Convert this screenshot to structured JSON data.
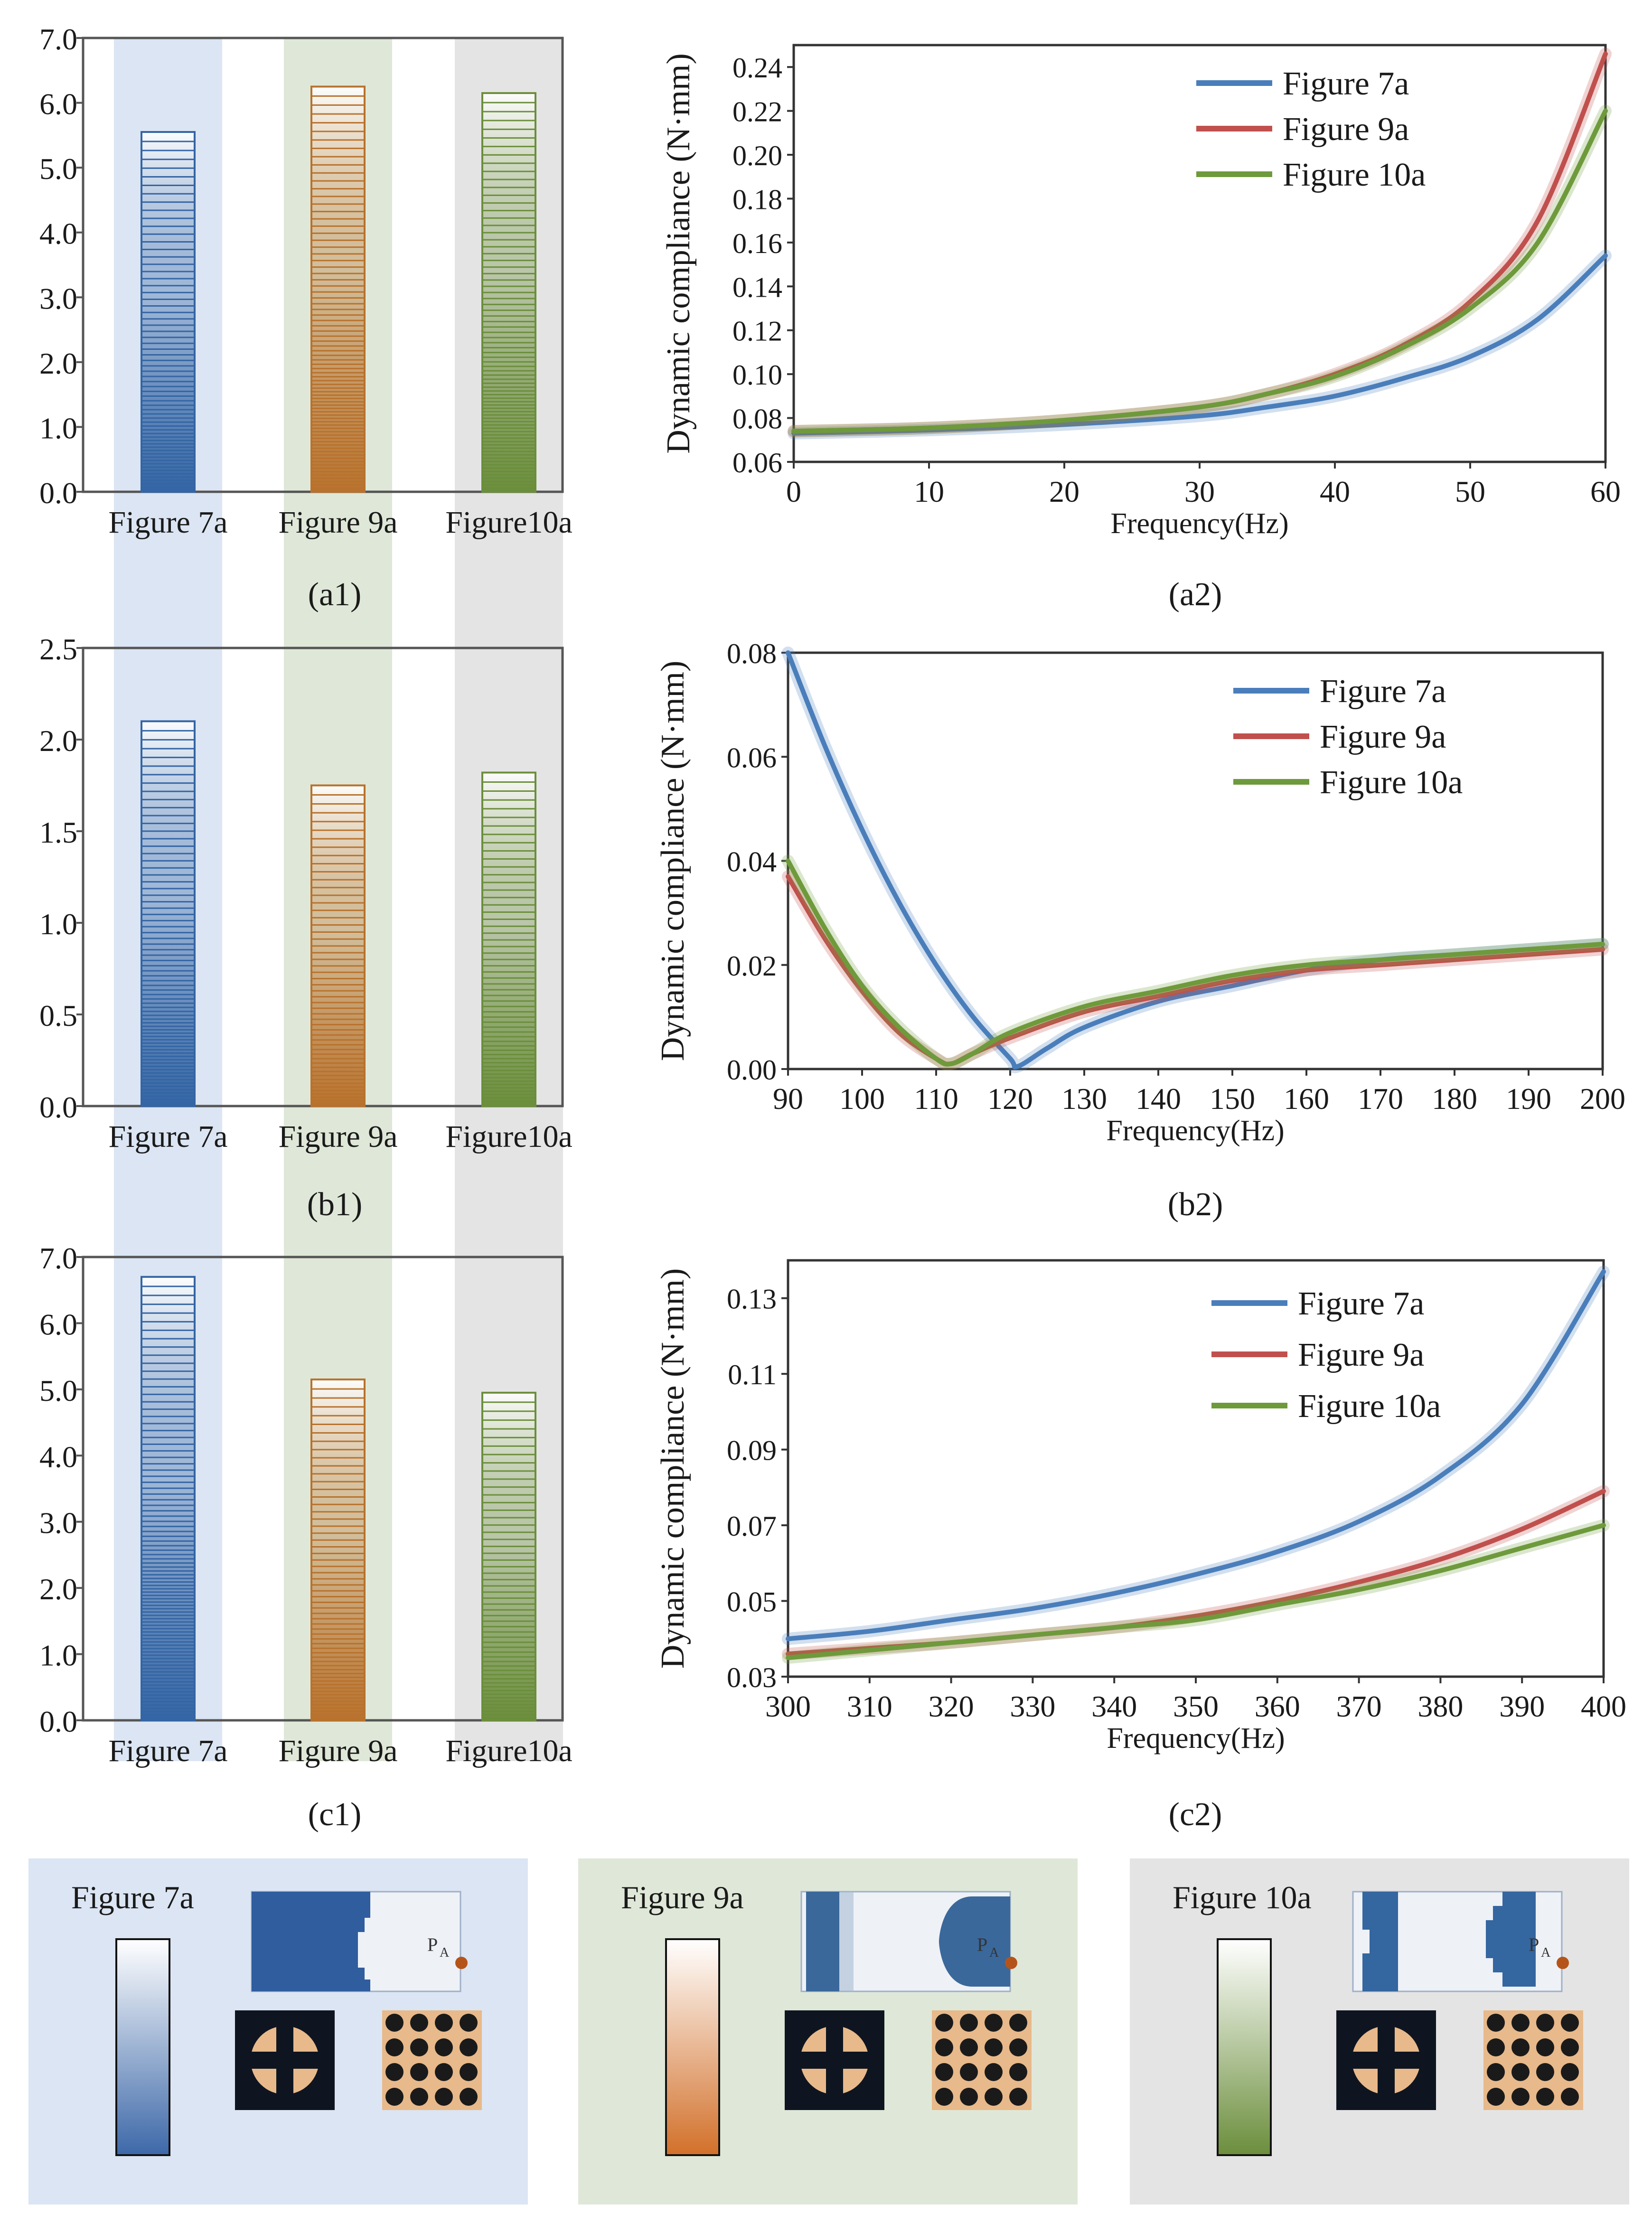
{
  "figure_labels": [
    "(a1)",
    "(a2)",
    "(b1)",
    "(b2)",
    "(c1)",
    "(c2)"
  ],
  "colors": {
    "blue": "#3465a4",
    "orange": "#b8722d",
    "green": "#6b8e3c",
    "red": "#c0504d",
    "line_green": "#6e9a3c",
    "band_blue": "#dbe5f3",
    "band_green": "#dfe8d8",
    "band_gray": "#e4e4e4"
  },
  "chart_data": [
    {
      "id": "a1",
      "type": "bar",
      "categories": [
        "Figure 7a",
        "Figure 9a",
        "Figure10a"
      ],
      "values": [
        5.55,
        6.25,
        6.15
      ],
      "ylim": [
        0,
        7
      ],
      "ytick_step": 1,
      "ytick_decimals": 1,
      "title": "",
      "xlabel": "",
      "ylabel": ""
    },
    {
      "id": "a2",
      "type": "line",
      "xlim": [
        0,
        60
      ],
      "x_ticks": [
        0,
        10,
        20,
        30,
        40,
        50,
        60
      ],
      "ylim": [
        0.06,
        0.25
      ],
      "y_ticks": [
        0.06,
        0.08,
        0.1,
        0.12,
        0.14,
        0.16,
        0.18,
        0.2,
        0.22,
        0.24
      ],
      "ytick_decimals": 2,
      "xlabel": "Frequency(Hz)",
      "ylabel": "Dynamic compliance (N·mm)",
      "legend_position": "top-right",
      "series": [
        {
          "name": "Figure 7a",
          "color": "#4a7ebb",
          "x": [
            0,
            10,
            20,
            30,
            35,
            40,
            45,
            50,
            55,
            60
          ],
          "y": [
            0.073,
            0.0745,
            0.077,
            0.081,
            0.085,
            0.09,
            0.098,
            0.108,
            0.125,
            0.154
          ]
        },
        {
          "name": "Figure 9a",
          "color": "#c0504d",
          "x": [
            0,
            10,
            20,
            30,
            35,
            40,
            45,
            50,
            55,
            60
          ],
          "y": [
            0.074,
            0.0755,
            0.079,
            0.085,
            0.091,
            0.1,
            0.113,
            0.133,
            0.17,
            0.246
          ]
        },
        {
          "name": "Figure 10a",
          "color": "#6e9a3c",
          "x": [
            0,
            10,
            20,
            30,
            35,
            40,
            45,
            50,
            55,
            60
          ],
          "y": [
            0.074,
            0.0755,
            0.079,
            0.085,
            0.091,
            0.099,
            0.112,
            0.13,
            0.16,
            0.22
          ]
        }
      ]
    },
    {
      "id": "b1",
      "type": "bar",
      "categories": [
        "Figure 7a",
        "Figure 9a",
        "Figure10a"
      ],
      "values": [
        2.1,
        1.75,
        1.82
      ],
      "ylim": [
        0,
        2.5
      ],
      "ytick_step": 0.5,
      "ytick_decimals": 1,
      "title": "",
      "xlabel": "",
      "ylabel": ""
    },
    {
      "id": "b2",
      "type": "line",
      "xlim": [
        90,
        200
      ],
      "x_ticks": [
        90,
        100,
        110,
        120,
        130,
        140,
        150,
        160,
        170,
        180,
        190,
        200
      ],
      "ylim": [
        0,
        0.08
      ],
      "y_ticks": [
        0.0,
        0.02,
        0.04,
        0.06,
        0.08
      ],
      "ytick_decimals": 2,
      "xlabel": "Frequency(Hz)",
      "ylabel": "Dynamic compliance (N·mm)",
      "legend_position": "top-right",
      "series": [
        {
          "name": "Figure 7a",
          "color": "#4a7ebb",
          "x": [
            90,
            95,
            100,
            105,
            110,
            115,
            120,
            121,
            125,
            130,
            140,
            150,
            160,
            170,
            180,
            190,
            200
          ],
          "y": [
            0.08,
            0.062,
            0.046,
            0.032,
            0.02,
            0.01,
            0.002,
            0.0005,
            0.004,
            0.008,
            0.013,
            0.016,
            0.019,
            0.021,
            0.022,
            0.023,
            0.024
          ]
        },
        {
          "name": "Figure 9a",
          "color": "#c0504d",
          "x": [
            90,
            95,
            100,
            105,
            110,
            112,
            115,
            120,
            130,
            140,
            150,
            160,
            170,
            180,
            190,
            200
          ],
          "y": [
            0.037,
            0.025,
            0.015,
            0.007,
            0.002,
            0.001,
            0.003,
            0.006,
            0.011,
            0.014,
            0.017,
            0.019,
            0.02,
            0.021,
            0.022,
            0.023
          ]
        },
        {
          "name": "Figure 10a",
          "color": "#6e9a3c",
          "x": [
            90,
            95,
            100,
            105,
            110,
            112,
            115,
            120,
            130,
            140,
            150,
            160,
            170,
            180,
            190,
            200
          ],
          "y": [
            0.04,
            0.027,
            0.016,
            0.008,
            0.002,
            0.001,
            0.003,
            0.007,
            0.012,
            0.015,
            0.018,
            0.02,
            0.021,
            0.022,
            0.023,
            0.024
          ]
        }
      ]
    },
    {
      "id": "c1",
      "type": "bar",
      "categories": [
        "Figure 7a",
        "Figure 9a",
        "Figure10a"
      ],
      "values": [
        6.7,
        5.15,
        4.95
      ],
      "ylim": [
        0,
        7
      ],
      "ytick_step": 1,
      "ytick_decimals": 1,
      "title": "",
      "xlabel": "",
      "ylabel": ""
    },
    {
      "id": "c2",
      "type": "line",
      "xlim": [
        300,
        400
      ],
      "x_ticks": [
        300,
        310,
        320,
        330,
        340,
        350,
        360,
        370,
        380,
        390,
        400
      ],
      "ylim": [
        0.03,
        0.14
      ],
      "y_ticks": [
        0.03,
        0.05,
        0.07,
        0.09,
        0.11,
        0.13
      ],
      "ytick_decimals": 2,
      "xlabel": "Frequency(Hz)",
      "ylabel": "Dynamic compliance (N·mm)",
      "legend_position": "top-right",
      "series": [
        {
          "name": "Figure 7a",
          "color": "#4a7ebb",
          "x": [
            300,
            310,
            320,
            330,
            340,
            350,
            360,
            370,
            380,
            390,
            400
          ],
          "y": [
            0.04,
            0.042,
            0.045,
            0.048,
            0.052,
            0.057,
            0.063,
            0.071,
            0.083,
            0.102,
            0.137
          ]
        },
        {
          "name": "Figure 9a",
          "color": "#c0504d",
          "x": [
            300,
            310,
            320,
            330,
            340,
            350,
            360,
            370,
            380,
            390,
            400
          ],
          "y": [
            0.036,
            0.0375,
            0.039,
            0.041,
            0.043,
            0.046,
            0.05,
            0.055,
            0.061,
            0.069,
            0.079
          ]
        },
        {
          "name": "Figure 10a",
          "color": "#6e9a3c",
          "x": [
            300,
            310,
            320,
            330,
            340,
            350,
            360,
            370,
            380,
            390,
            400
          ],
          "y": [
            0.035,
            0.037,
            0.039,
            0.041,
            0.043,
            0.045,
            0.049,
            0.053,
            0.058,
            0.064,
            0.07
          ]
        }
      ]
    }
  ],
  "panels": [
    {
      "label": "Figure 7a",
      "point_label": "P",
      "point_sub": "A",
      "gradient_end": "#3d68a8",
      "tint": "#dbe5f3",
      "shape": "#2f5d9e"
    },
    {
      "label": "Figure 9a",
      "point_label": "P",
      "point_sub": "A",
      "gradient_end": "#d2702a",
      "tint": "#dfe8d8",
      "shape": "#3a689b"
    },
    {
      "label": "Figure 10a",
      "point_label": "P",
      "point_sub": "A",
      "gradient_end": "#6b8e3c",
      "tint": "#e4e4e4",
      "shape": "#3466a0"
    }
  ]
}
